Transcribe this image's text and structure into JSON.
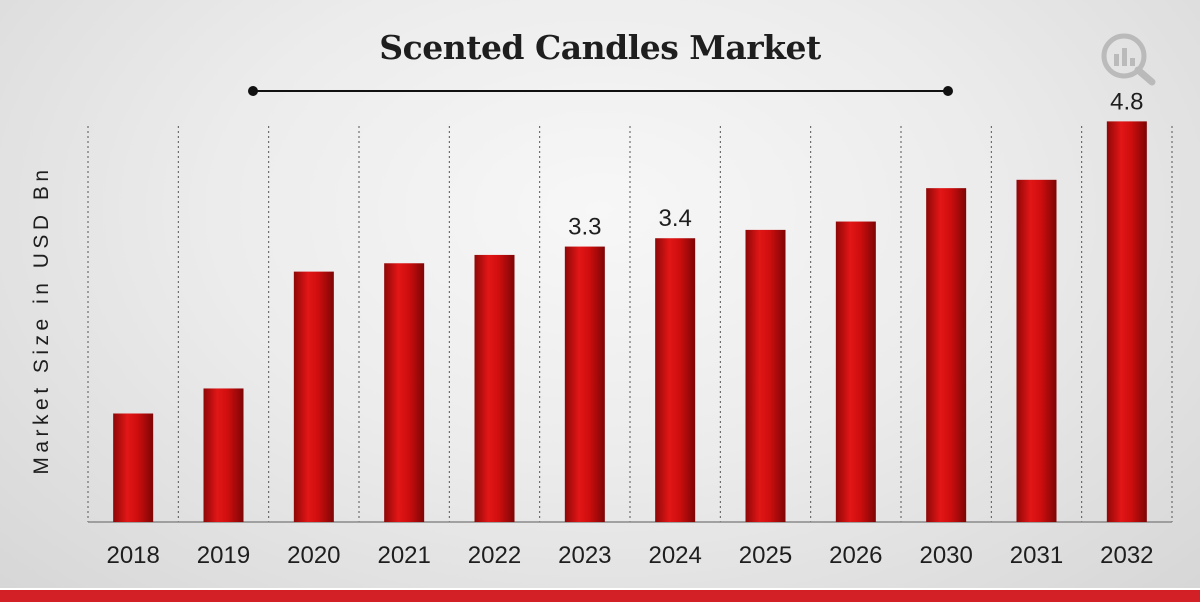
{
  "chart_data": {
    "type": "bar",
    "title": "Scented Candles Market",
    "xlabel": "",
    "ylabel": "Market Size in USD Bn",
    "categories": [
      "2018",
      "2019",
      "2020",
      "2021",
      "2022",
      "2023",
      "2024",
      "2025",
      "2026",
      "2030",
      "2031",
      "2032"
    ],
    "values": [
      1.3,
      1.6,
      3.0,
      3.1,
      3.2,
      3.3,
      3.4,
      3.5,
      3.6,
      4.0,
      4.1,
      4.8
    ],
    "data_labels": [
      "",
      "",
      "",
      "",
      "",
      "3.3",
      "3.4",
      "",
      "",
      "",
      "",
      "4.8"
    ],
    "ylim": [
      0,
      5.2
    ],
    "grid": "vertical dotted separators",
    "legend": "none",
    "bar_color": "#c80a0e",
    "bar_highlight": "#ee1a1a",
    "bar_shadow": "#8a0606"
  },
  "colors": {
    "accent_band": "#d31f26",
    "text": "#1e1e1e"
  },
  "icons": {
    "logo": "market-research-logo-icon"
  }
}
